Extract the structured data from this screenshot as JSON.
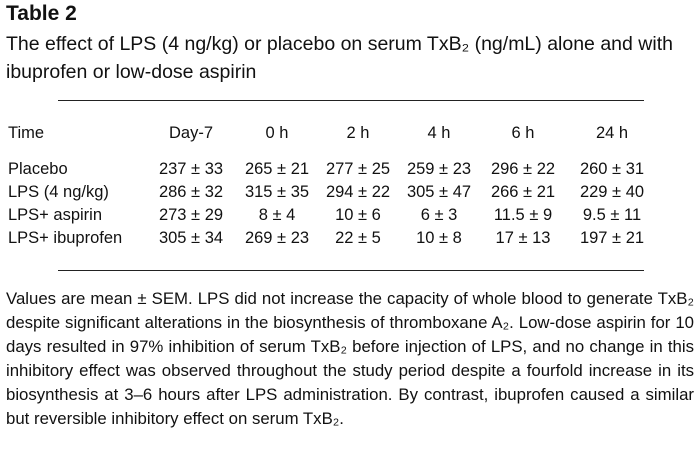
{
  "header": {
    "title": "Table 2",
    "caption": "The effect of LPS (4 ng/kg) or placebo on serum TxB₂ (ng/mL) alone and with ibuprofen or low-dose aspirin"
  },
  "table": {
    "header": [
      "Time",
      "Day-7",
      "0 h",
      "2 h",
      "4 h",
      "6 h",
      "24 h"
    ],
    "rows": [
      [
        "Placebo",
        "237 ± 33",
        "265 ± 21",
        "277 ± 25",
        "259 ± 23",
        "296 ± 22",
        "260 ± 31"
      ],
      [
        "LPS (4 ng/kg)",
        "286 ± 32",
        "315 ± 35",
        "294 ± 22",
        "305 ± 47",
        "266 ± 21",
        "229 ± 40"
      ],
      [
        "LPS+ aspirin",
        "273 ± 29",
        "8 ± 4",
        "10 ± 6",
        "6 ± 3",
        "11.5 ± 9",
        "9.5 ± 11"
      ],
      [
        "LPS+ ibuprofen",
        "305 ± 34",
        "269 ± 23",
        "22 ± 5",
        "10 ± 8",
        "17 ± 13",
        "197 ± 21"
      ]
    ]
  },
  "note": "Values are mean ± SEM. LPS did not increase the capacity of whole blood to generate TxB₂ despite significant alterations in the biosynthesis of thromboxane A₂. Low-dose aspirin for 10 days resulted in 97% inhibition of serum TxB₂ before injection of LPS, and no change in this inhibitory effect was observed throughout the study period despite a fourfold increase in its biosynthesis at 3–6 hours after LPS administration. By contrast, ibuprofen caused a similar but reversible inhibitory effect on serum TxB₂."
}
